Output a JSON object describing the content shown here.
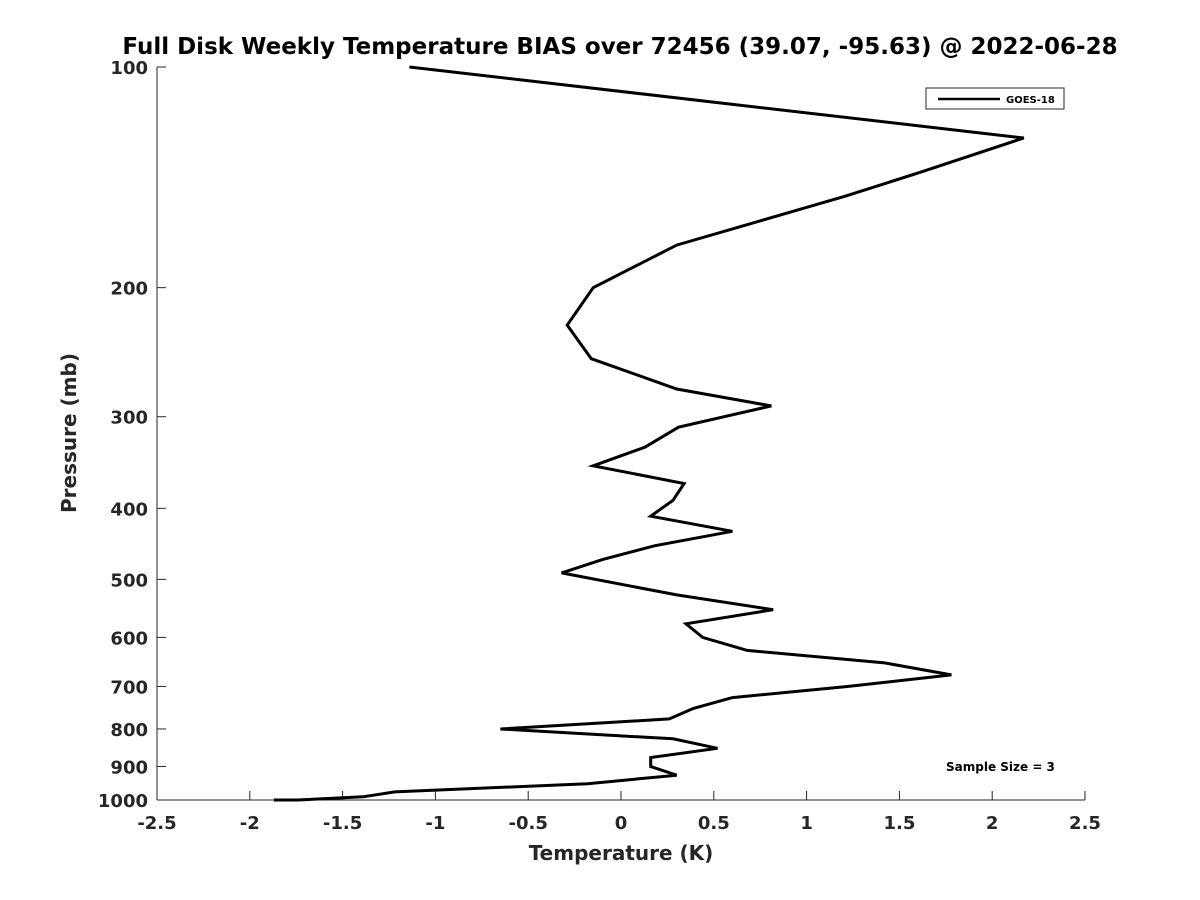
{
  "chart_data": {
    "type": "line",
    "title": "Full Disk Weekly Temperature BIAS over 72456 (39.07, -95.63) @ 2022-06-28",
    "xlabel": "Temperature (K)",
    "ylabel": "Pressure (mb)",
    "xlim": [
      -2.5,
      2.5
    ],
    "ylim": [
      1000,
      100
    ],
    "yscale": "log",
    "y_reversed": true,
    "grid": false,
    "legend_position": "top-right",
    "x_ticks": [
      -2.5,
      -2,
      -1.5,
      -1,
      -0.5,
      0,
      0.5,
      1,
      1.5,
      2,
      2.5
    ],
    "x_tick_labels": [
      "-2.5",
      "-2",
      "-1.5",
      "-1",
      "-0.5",
      "0",
      "0.5",
      "1",
      "1.5",
      "2",
      "2.5"
    ],
    "y_ticks": [
      100,
      200,
      300,
      400,
      500,
      600,
      700,
      800,
      900,
      1000
    ],
    "y_tick_labels": [
      "100",
      "200",
      "300",
      "400",
      "500",
      "600",
      "700",
      "800",
      "900",
      "1000"
    ],
    "annotation": "Sample Size = 3",
    "series": [
      {
        "name": "GOES-18",
        "color": "#000000",
        "x": [
          -1.14,
          2.17,
          1.62,
          1.21,
          0.3,
          -0.15,
          -0.29,
          -0.16,
          0.3,
          0.81,
          0.31,
          0.13,
          -0.15,
          0.34,
          0.28,
          0.16,
          0.6,
          0.18,
          -0.1,
          -0.32,
          0.3,
          0.82,
          0.35,
          0.44,
          0.68,
          1.42,
          1.78,
          1.22,
          0.6,
          0.39,
          0.26,
          -0.65,
          0.28,
          0.52,
          0.16,
          0.16,
          0.3,
          -0.18,
          -1.22,
          -1.39,
          -1.74,
          -1.87
        ],
        "y": [
          100,
          125,
          139,
          150,
          175,
          200,
          225,
          250,
          275,
          290,
          310,
          330,
          350,
          370,
          390,
          410,
          430,
          450,
          470,
          490,
          525,
          550,
          575,
          600,
          625,
          650,
          675,
          700,
          725,
          750,
          775,
          800,
          825,
          850,
          875,
          900,
          925,
          950,
          975,
          990,
          1000,
          1000
        ]
      }
    ]
  }
}
